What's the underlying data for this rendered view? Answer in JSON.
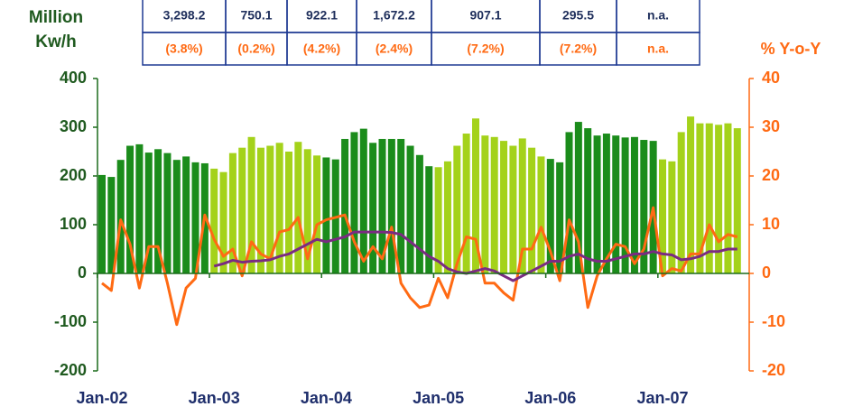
{
  "table": {
    "rows": [
      [
        "3,298.2",
        "750.1",
        "922.1",
        "1,672.2",
        "907.1",
        "295.5",
        "n.a."
      ],
      [
        "(3.8%)",
        "(0.2%)",
        "(4.2%)",
        "(2.4%)",
        "(7.2%)",
        "(7.2%)",
        "n.a."
      ]
    ]
  },
  "chart_data": {
    "type": "bar",
    "ylabel": [
      "Million",
      "Kw/h"
    ],
    "y2label": "% Y-o-Y",
    "categories": [
      "Jan-02",
      null,
      null,
      null,
      null,
      null,
      null,
      null,
      null,
      null,
      null,
      null,
      "Jan-03",
      null,
      null,
      null,
      null,
      null,
      null,
      null,
      null,
      null,
      null,
      null,
      "Jan-04",
      null,
      null,
      null,
      null,
      null,
      null,
      null,
      null,
      null,
      null,
      null,
      "Jan-05",
      null,
      null,
      null,
      null,
      null,
      null,
      null,
      null,
      null,
      null,
      null,
      "Jan-06",
      null,
      null,
      null,
      null,
      null,
      null,
      null,
      null,
      null,
      null,
      null,
      "Jan-07",
      null,
      null,
      null,
      null,
      null,
      null,
      null,
      null
    ],
    "ylim": [
      -200,
      400
    ],
    "yticks": [
      -200,
      -100,
      0,
      100,
      200,
      300,
      400
    ],
    "y2lim": [
      -20,
      40
    ],
    "y2ticks": [
      -20,
      -10,
      0,
      10,
      20,
      30,
      40
    ],
    "series": [
      {
        "type": "bar",
        "values": [
          202,
          198,
          233,
          262,
          265,
          248,
          255,
          247,
          233,
          240,
          228,
          226,
          215,
          208,
          247,
          258,
          280,
          258,
          262,
          268,
          250,
          270,
          255,
          242,
          238,
          234,
          276,
          290,
          297,
          268,
          276,
          276,
          276,
          262,
          243,
          220,
          218,
          230,
          262,
          287,
          318,
          283,
          280,
          272,
          262,
          277,
          258,
          240,
          235,
          228,
          290,
          311,
          298,
          283,
          287,
          283,
          279,
          280,
          274,
          272,
          234,
          230,
          290,
          322,
          308,
          308,
          305,
          308,
          298
        ],
        "colors": [
          "#1b8c1b",
          "#1b8c1b",
          "#1b8c1b",
          "#1b8c1b",
          "#1b8c1b",
          "#1b8c1b",
          "#1b8c1b",
          "#1b8c1b",
          "#1b8c1b",
          "#1b8c1b",
          "#1b8c1b",
          "#1b8c1b",
          "#a4d21a",
          "#a4d21a",
          "#a4d21a",
          "#a4d21a",
          "#a4d21a",
          "#a4d21a",
          "#a4d21a",
          "#a4d21a",
          "#a4d21a",
          "#a4d21a",
          "#a4d21a",
          "#a4d21a",
          "#1b8c1b",
          "#1b8c1b",
          "#1b8c1b",
          "#1b8c1b",
          "#1b8c1b",
          "#1b8c1b",
          "#1b8c1b",
          "#1b8c1b",
          "#1b8c1b",
          "#1b8c1b",
          "#1b8c1b",
          "#1b8c1b",
          "#a4d21a",
          "#a4d21a",
          "#a4d21a",
          "#a4d21a",
          "#a4d21a",
          "#a4d21a",
          "#a4d21a",
          "#a4d21a",
          "#a4d21a",
          "#a4d21a",
          "#a4d21a",
          "#a4d21a",
          "#1b8c1b",
          "#1b8c1b",
          "#1b8c1b",
          "#1b8c1b",
          "#1b8c1b",
          "#1b8c1b",
          "#1b8c1b",
          "#1b8c1b",
          "#1b8c1b",
          "#1b8c1b",
          "#1b8c1b",
          "#1b8c1b",
          "#a4d21a",
          "#a4d21a",
          "#a4d21a",
          "#a4d21a",
          "#a4d21a",
          "#a4d21a",
          "#a4d21a",
          "#a4d21a",
          "#a4d21a"
        ]
      },
      {
        "type": "line",
        "axis": "y2",
        "color": "#ff6a13",
        "values": [
          -2,
          -3.5,
          11,
          6,
          -3,
          5.5,
          5.5,
          -2,
          -10.5,
          -3,
          -1,
          12,
          7,
          3.5,
          5,
          -0.5,
          6.5,
          4,
          3,
          8.5,
          9,
          11.5,
          3,
          10,
          11,
          11.5,
          12,
          6.5,
          2.5,
          5.5,
          3,
          9.5,
          -2,
          -5,
          -7,
          -6.5,
          -1,
          -5,
          2,
          7.5,
          7,
          -2,
          -2,
          -4,
          -5.5,
          5,
          5,
          9.5,
          4.5,
          -1.5,
          11,
          6.5,
          -7,
          -0.5,
          3,
          6,
          5.5,
          2,
          5,
          13.5,
          -0.5,
          1,
          0.5,
          4,
          4,
          10,
          6.5,
          8,
          7.5
        ]
      },
      {
        "type": "line",
        "axis": "y2",
        "color": "#7a2b82",
        "values": [
          null,
          null,
          null,
          null,
          null,
          null,
          null,
          null,
          null,
          null,
          null,
          null,
          1.5,
          2,
          2.7,
          2.3,
          2.5,
          2.6,
          2.8,
          3.5,
          4,
          5,
          6,
          7,
          6.5,
          7,
          7.5,
          8.5,
          8.5,
          8.5,
          8.5,
          8.4,
          8,
          6.5,
          5,
          3.5,
          2.5,
          1,
          0.3,
          0,
          0.5,
          1,
          0.5,
          -0.5,
          -1.5,
          -0.5,
          0.5,
          1.5,
          2.5,
          2.5,
          3.5,
          4,
          3,
          2.5,
          2.5,
          3,
          3.5,
          4,
          4,
          4.5,
          4,
          3.8,
          2.8,
          3,
          3.5,
          4.5,
          4.5,
          5,
          5
        ]
      }
    ]
  }
}
